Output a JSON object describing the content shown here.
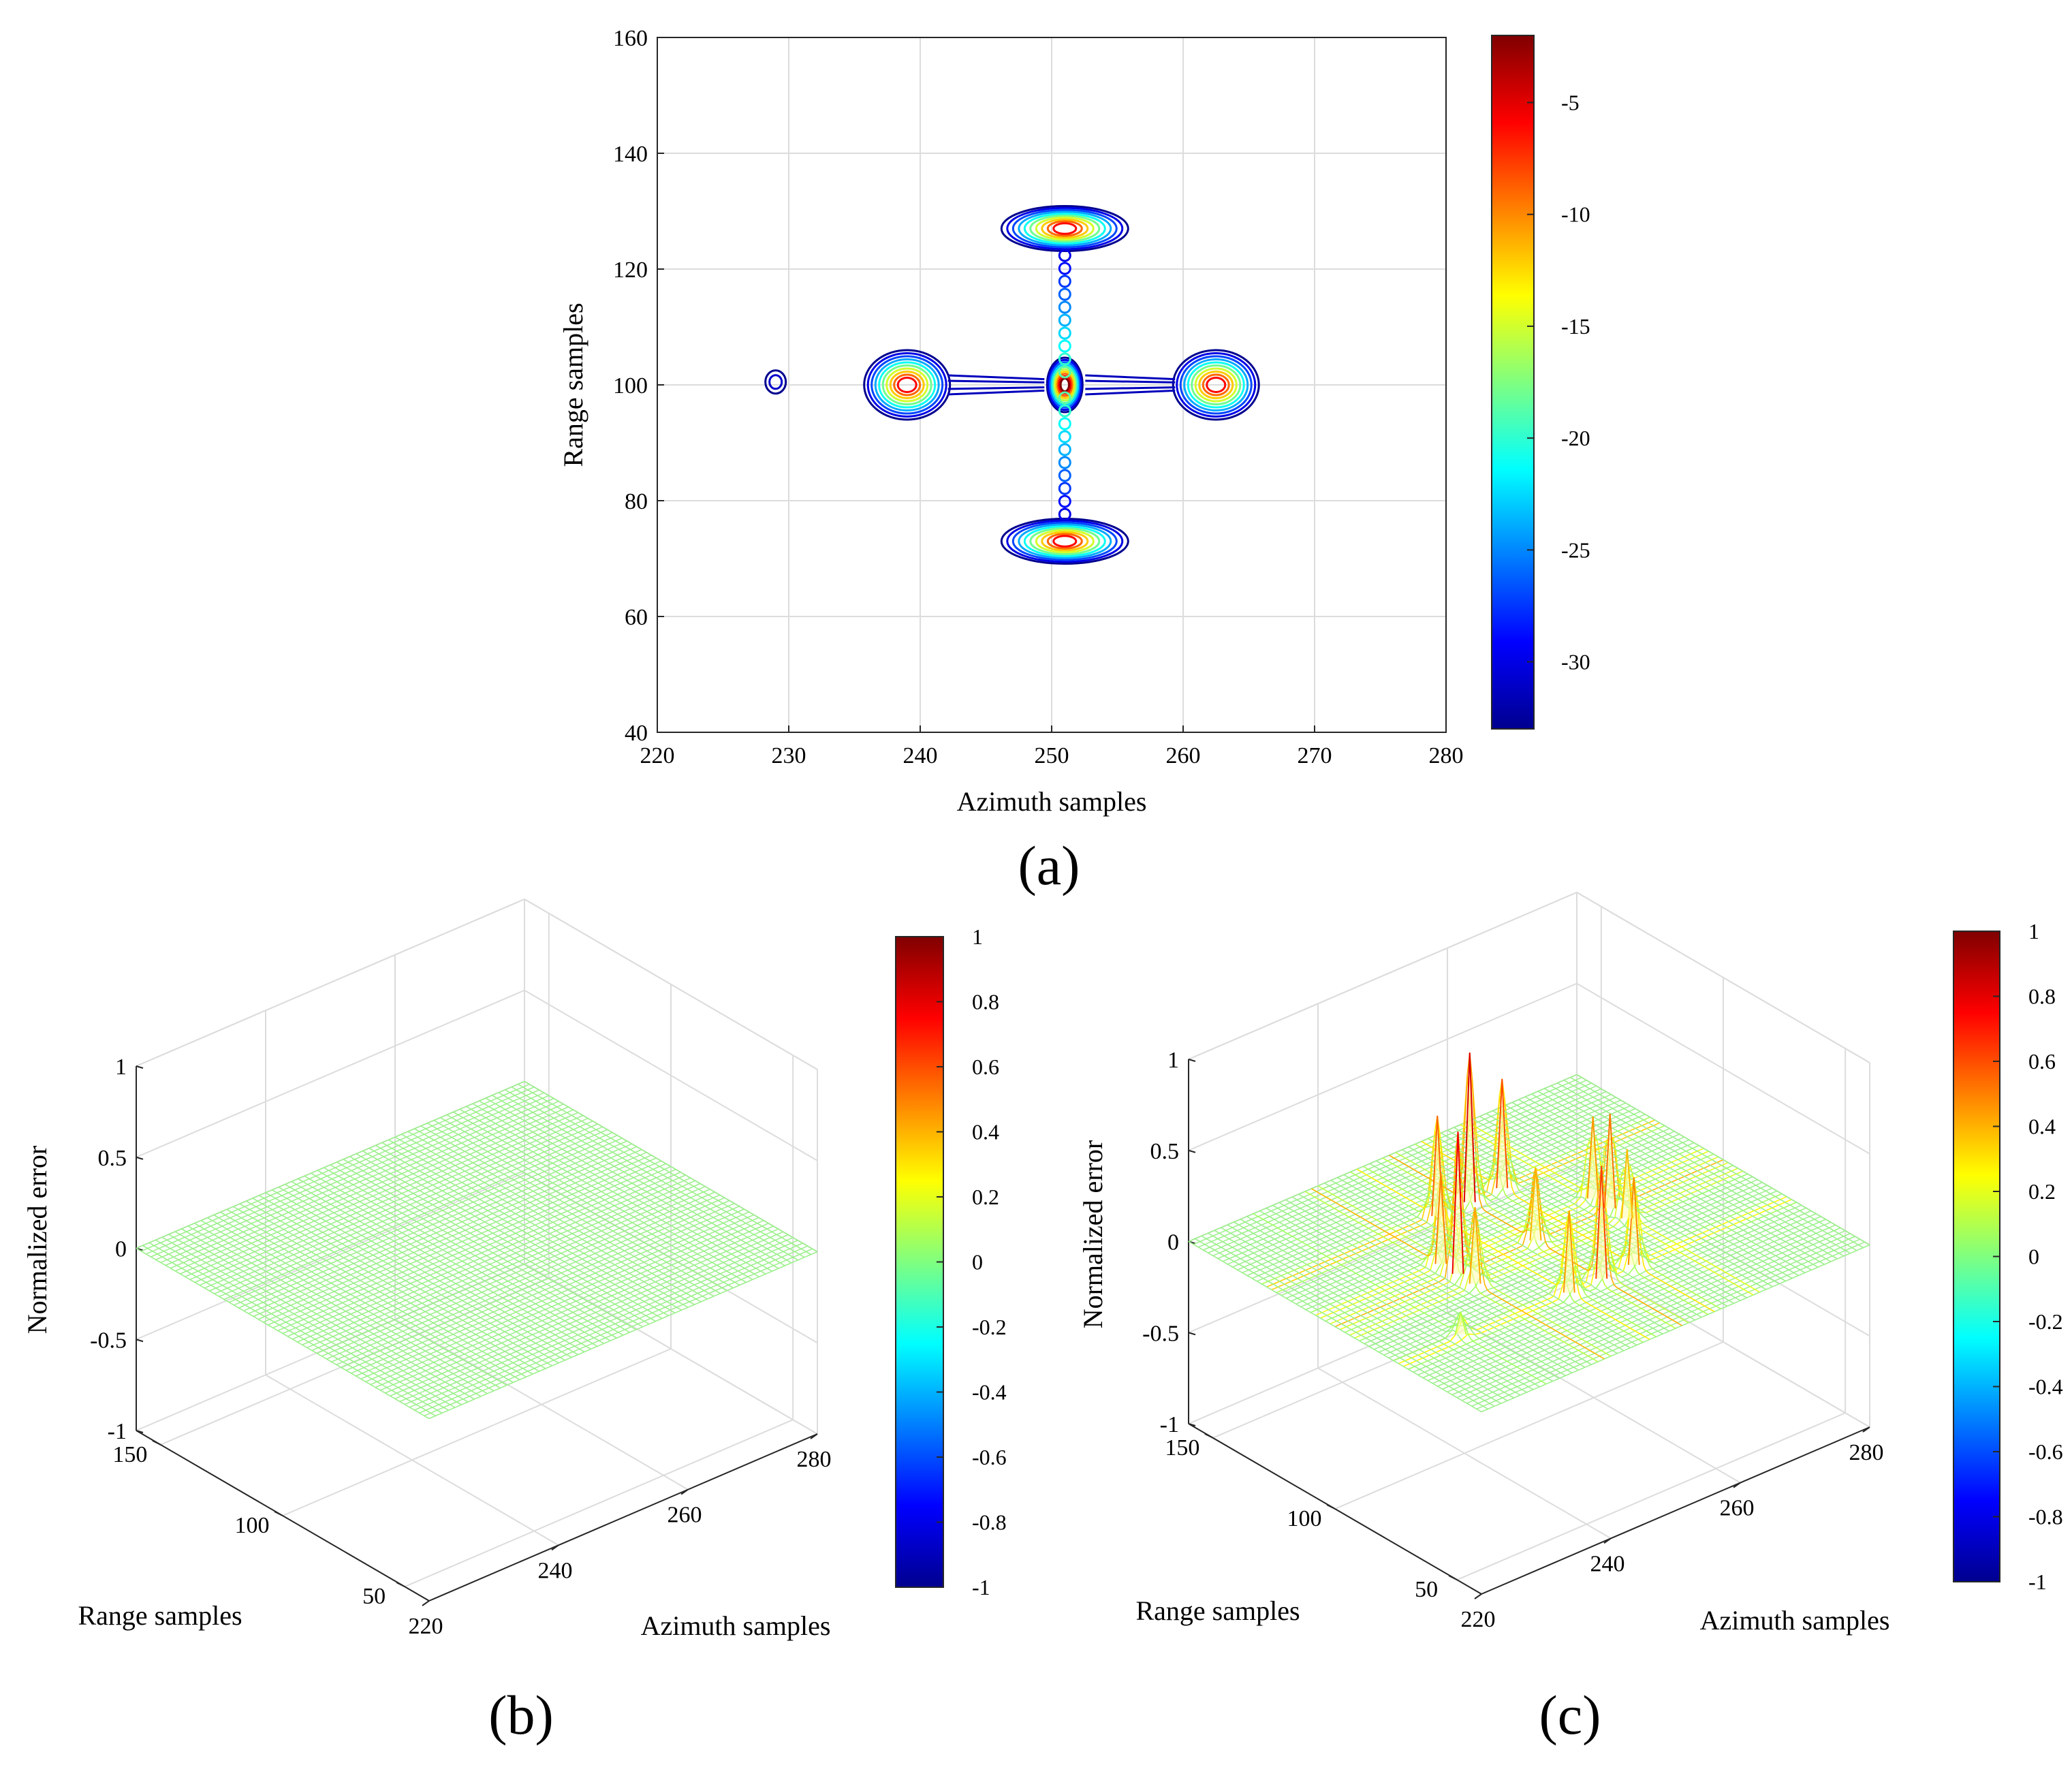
{
  "colors": {
    "jet_stops": [
      "#00008f",
      "#0000ff",
      "#00ffff",
      "#ffff00",
      "#ff0000",
      "#800000"
    ],
    "grid": "#dcdcdc",
    "surface_base": "#9cf08c",
    "axis": "#262626"
  },
  "chart_data": [
    {
      "id": "a",
      "type": "contour",
      "panel_label": "(a)",
      "xlabel": "Azimuth samples",
      "ylabel": "Range samples",
      "xlim": [
        220,
        280
      ],
      "ylim": [
        40,
        160
      ],
      "xticks": [
        220,
        230,
        240,
        250,
        260,
        270,
        280
      ],
      "yticks": [
        40,
        60,
        80,
        100,
        120,
        140,
        160
      ],
      "grid": true,
      "colorbar": {
        "range": [
          -33,
          -2
        ],
        "ticks": [
          -30,
          -25,
          -20,
          -15,
          -10,
          -5
        ]
      },
      "features": [
        {
          "name": "center target",
          "x": 251,
          "y": 100,
          "peak_db": -2
        },
        {
          "name": "upper target",
          "x": 251,
          "y": 127,
          "peak_db": -6
        },
        {
          "name": "lower target",
          "x": 251,
          "y": 73,
          "peak_db": -6
        },
        {
          "name": "left target",
          "x": 239,
          "y": 100,
          "peak_db": -6
        },
        {
          "name": "right target",
          "x": 262.5,
          "y": 100,
          "peak_db": -6
        },
        {
          "name": "small lobe",
          "x": 229,
          "y": 100.5,
          "peak_db": -31
        }
      ]
    },
    {
      "id": "b",
      "type": "surface",
      "panel_label": "(b)",
      "xlabel": "Azimuth samples",
      "ylabel": "Range samples",
      "zlabel": "Normalized error",
      "xlim": [
        220,
        280
      ],
      "ylim": [
        40,
        160
      ],
      "zlim": [
        -1,
        1
      ],
      "xticks": [
        220,
        240,
        260,
        280
      ],
      "yticks": [
        50,
        100,
        150
      ],
      "zticks": [
        -1,
        -0.5,
        0,
        0.5,
        1
      ],
      "colorbar": {
        "range": [
          -1,
          1
        ],
        "ticks": [
          -1,
          -0.8,
          -0.6,
          -0.4,
          -0.2,
          0,
          0.2,
          0.4,
          0.6,
          0.8,
          1
        ]
      },
      "peaks": []
    },
    {
      "id": "c",
      "type": "surface",
      "panel_label": "(c)",
      "xlabel": "Azimuth samples",
      "ylabel": "Range samples",
      "zlabel": "Normalized error",
      "xlim": [
        220,
        280
      ],
      "ylim": [
        40,
        160
      ],
      "zlim": [
        -1,
        1
      ],
      "xticks": [
        220,
        240,
        260,
        280
      ],
      "yticks": [
        50,
        100,
        150
      ],
      "zticks": [
        -1,
        -0.5,
        0,
        0.5,
        1
      ],
      "colorbar": {
        "range": [
          -1,
          1
        ],
        "ticks": [
          -1,
          -0.8,
          -0.6,
          -0.4,
          -0.2,
          0,
          0.2,
          0.4,
          0.6,
          0.8,
          1
        ]
      },
      "peaks": [
        {
          "x": 251,
          "y": 127,
          "z": 0.82
        },
        {
          "x": 246,
          "y": 127,
          "z": 0.55
        },
        {
          "x": 256,
          "y": 127,
          "z": 0.6
        },
        {
          "x": 251,
          "y": 73,
          "z": 0.62
        },
        {
          "x": 246,
          "y": 73,
          "z": 0.45
        },
        {
          "x": 256,
          "y": 73,
          "z": 0.48
        },
        {
          "x": 239,
          "y": 100,
          "z": 0.78
        },
        {
          "x": 239,
          "y": 107,
          "z": 0.5
        },
        {
          "x": 239,
          "y": 93,
          "z": 0.42
        },
        {
          "x": 262.5,
          "y": 100,
          "z": 0.52
        },
        {
          "x": 262.5,
          "y": 107,
          "z": 0.45
        },
        {
          "x": 262.5,
          "y": 93,
          "z": 0.38
        },
        {
          "x": 251,
          "y": 100,
          "z": 0.4
        },
        {
          "x": 230,
          "y": 75,
          "z": 0.12
        }
      ]
    }
  ]
}
